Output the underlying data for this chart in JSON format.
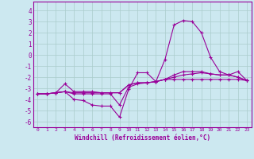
{
  "xlabel": "Windchill (Refroidissement éolien,°C)",
  "background_color": "#cce8f0",
  "grid_color": "#aacccc",
  "line_color": "#990099",
  "xlim": [
    -0.5,
    23.5
  ],
  "ylim": [
    -6.5,
    4.8
  ],
  "yticks": [
    -6,
    -5,
    -4,
    -3,
    -2,
    -1,
    0,
    1,
    2,
    3,
    4
  ],
  "xticks": [
    0,
    1,
    2,
    3,
    4,
    5,
    6,
    7,
    8,
    9,
    10,
    11,
    12,
    13,
    14,
    15,
    16,
    17,
    18,
    19,
    20,
    21,
    22,
    23
  ],
  "series": [
    {
      "x": [
        0,
        1,
        2,
        3,
        4,
        5,
        6,
        7,
        8,
        9,
        10,
        11,
        12,
        13,
        14,
        15,
        16,
        17,
        18,
        19,
        20,
        21,
        22,
        23
      ],
      "y": [
        -3.5,
        -3.5,
        -3.4,
        -3.3,
        -4.0,
        -4.1,
        -4.5,
        -4.6,
        -4.6,
        -5.6,
        -3.1,
        -1.6,
        -1.6,
        -2.4,
        -0.4,
        2.7,
        3.1,
        3.0,
        2.0,
        -0.2,
        -1.5,
        -1.8,
        -1.5,
        -2.3
      ]
    },
    {
      "x": [
        0,
        1,
        2,
        3,
        4,
        5,
        6,
        7,
        8,
        9,
        10,
        11,
        12,
        13,
        14,
        15,
        16,
        17,
        18,
        19,
        20,
        21,
        22,
        23
      ],
      "y": [
        -3.5,
        -3.5,
        -3.4,
        -2.6,
        -3.3,
        -3.3,
        -3.3,
        -3.4,
        -3.4,
        -3.4,
        -2.7,
        -2.5,
        -2.5,
        -2.4,
        -2.2,
        -1.8,
        -1.5,
        -1.5,
        -1.5,
        -1.7,
        -1.8,
        -1.8,
        -2.0,
        -2.3
      ]
    },
    {
      "x": [
        0,
        1,
        2,
        3,
        4,
        5,
        6,
        7,
        8,
        9,
        10,
        11,
        12,
        13,
        14,
        15,
        16,
        17,
        18,
        19,
        20,
        21,
        22,
        23
      ],
      "y": [
        -3.5,
        -3.5,
        -3.4,
        -3.3,
        -3.5,
        -3.5,
        -3.5,
        -3.5,
        -3.5,
        -4.5,
        -2.9,
        -2.6,
        -2.5,
        -2.4,
        -2.2,
        -2.0,
        -1.8,
        -1.7,
        -1.6,
        -1.7,
        -1.8,
        -1.8,
        -2.0,
        -2.3
      ]
    },
    {
      "x": [
        0,
        1,
        2,
        3,
        4,
        5,
        6,
        7,
        8,
        9,
        10,
        11,
        12,
        13,
        14,
        15,
        16,
        17,
        18,
        19,
        20,
        21,
        22,
        23
      ],
      "y": [
        -3.5,
        -3.5,
        -3.4,
        -3.3,
        -3.4,
        -3.4,
        -3.4,
        -3.4,
        -3.4,
        -3.4,
        -2.7,
        -2.5,
        -2.5,
        -2.4,
        -2.2,
        -2.2,
        -2.2,
        -2.2,
        -2.2,
        -2.2,
        -2.2,
        -2.2,
        -2.2,
        -2.3
      ]
    }
  ]
}
